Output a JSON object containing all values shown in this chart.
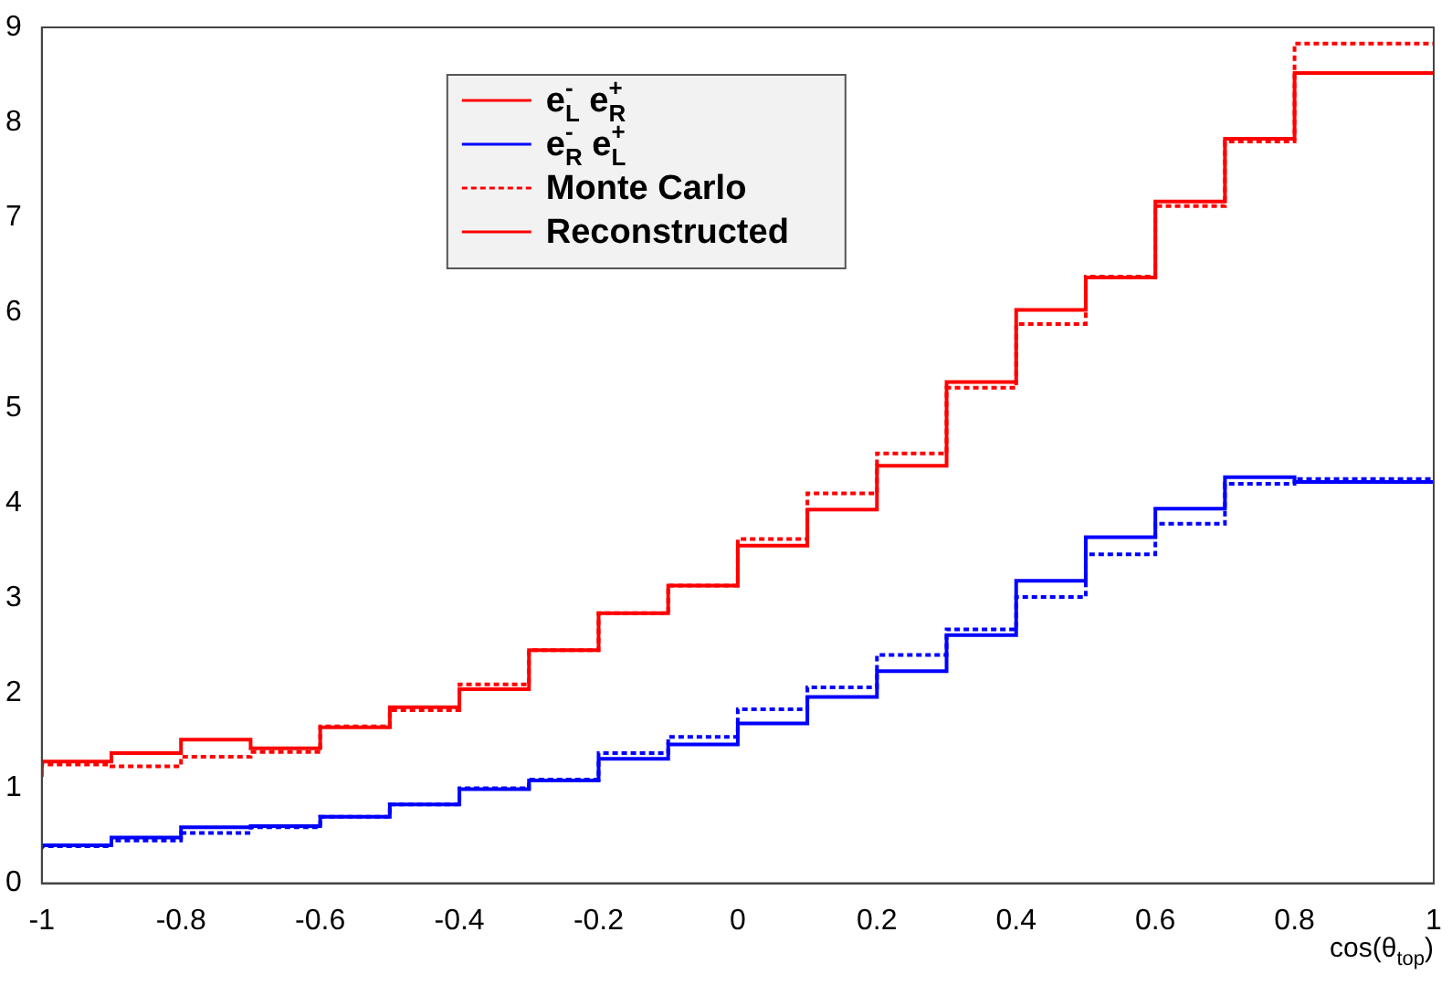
{
  "chart_data": {
    "type": "step",
    "xlabel": "cos(θ$_{top}$)",
    "x": [
      -1,
      -0.9,
      -0.8,
      -0.7,
      -0.6,
      -0.5,
      -0.4,
      -0.3,
      -0.2,
      -0.1,
      0,
      0.1,
      0.2,
      0.3,
      0.4,
      0.5,
      0.6,
      0.7,
      0.8,
      0.9,
      1
    ],
    "series": [
      {
        "name": "e$_{L}$$^{-}$ e$_{R}$$^{+}$",
        "color": "#ff0000",
        "line_style": "solid",
        "values": [
          1.17,
          1.28,
          1.37,
          1.51,
          1.42,
          1.64,
          1.85,
          2.04,
          2.45,
          2.84,
          3.13,
          3.55,
          3.93,
          4.39,
          5.27,
          6.03,
          6.37,
          7.17,
          7.83,
          8.52,
          8.52
        ]
      },
      {
        "name": "e$_{R}$$^{-}$ e$_{L}$$^{+}$",
        "color": "#0000ff",
        "line_style": "solid",
        "values": [
          0.37,
          0.4,
          0.48,
          0.59,
          0.6,
          0.7,
          0.83,
          0.99,
          1.08,
          1.31,
          1.46,
          1.68,
          1.96,
          2.23,
          2.61,
          3.18,
          3.64,
          3.94,
          4.27,
          4.22,
          4.22
        ]
      },
      {
        "name": "Monte Carlo",
        "color": "#ff0000",
        "line_style": "dotted",
        "values": [
          1.12,
          1.25,
          1.23,
          1.33,
          1.38,
          1.65,
          1.82,
          2.09,
          2.45,
          2.84,
          3.13,
          3.62,
          4.1,
          4.52,
          5.21,
          5.88,
          6.38,
          7.12,
          7.8,
          8.83,
          8.83
        ]
      },
      {
        "color": "#0000ff",
        "line_style": "dotted",
        "values": [
          0.36,
          0.39,
          0.45,
          0.53,
          0.59,
          0.7,
          0.83,
          1.0,
          1.09,
          1.37,
          1.54,
          1.83,
          2.06,
          2.4,
          2.67,
          3.01,
          3.46,
          3.78,
          4.2,
          4.25,
          4.25
        ]
      }
    ],
    "annotations": [
      "Reconstructed"
    ],
    "xlim": [
      -1,
      1
    ],
    "xticks": [
      -1,
      -0.8,
      -0.6,
      -0.4,
      -0.2,
      0,
      0.2,
      0.4,
      0.6,
      0.8,
      1
    ],
    "ylim": [
      0,
      9
    ],
    "yticks": [
      0,
      1,
      2,
      3,
      4,
      5,
      6,
      7,
      8,
      9
    ],
    "grid": false,
    "legend": "top left"
  }
}
